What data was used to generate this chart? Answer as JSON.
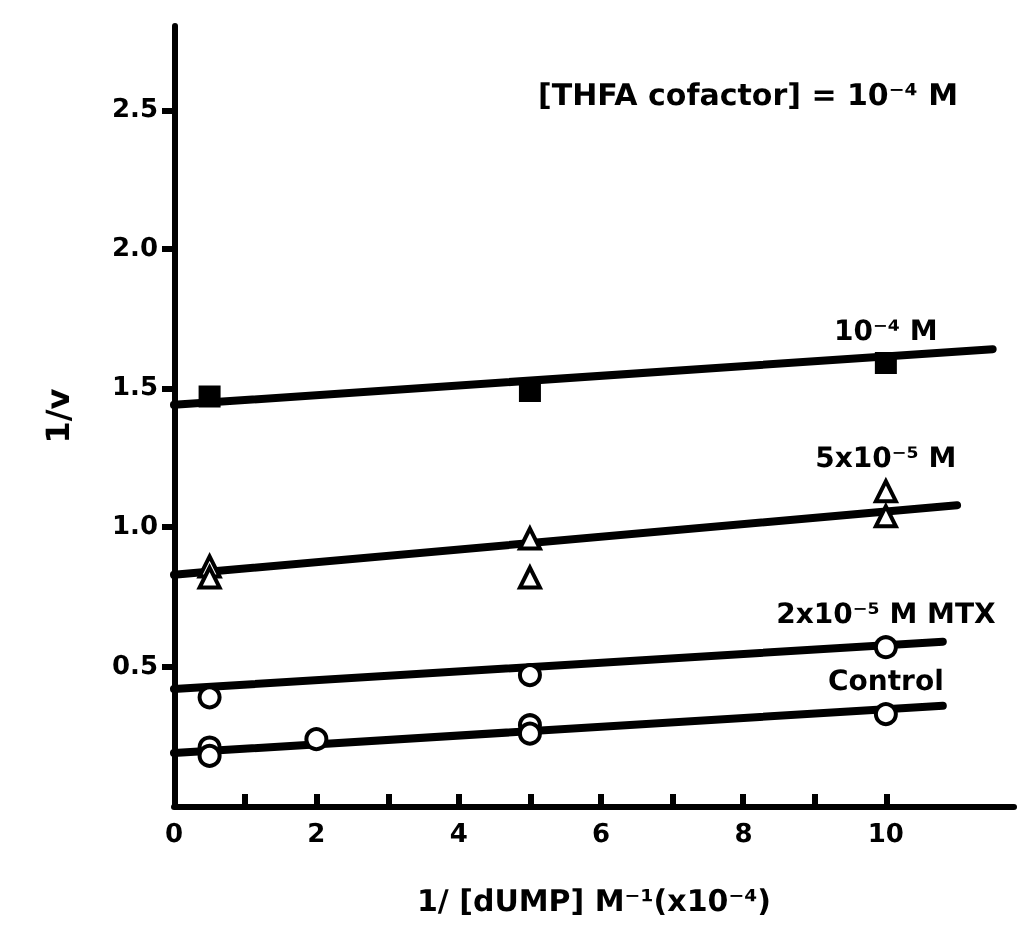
{
  "chart_data": {
    "type": "scatter",
    "xlabel": "1/ [dUMP] M⁻¹(x10⁻⁴)",
    "ylabel": "1/v",
    "annotations": [
      "[THFA cofactor] = 10⁻⁴ M"
    ],
    "xlim": [
      0,
      11.8
    ],
    "xticks": [
      0,
      {
        "value": 1,
        "label": null
      },
      2,
      {
        "value": 3,
        "label": null
      },
      4,
      {
        "value": 5,
        "label": null
      },
      6,
      {
        "value": 7,
        "label": null
      },
      8,
      {
        "value": 9,
        "label": null
      },
      10
    ],
    "ylim": [
      0,
      2.8
    ],
    "yticks": [
      0.5,
      {
        "value": 1,
        "label": "1.0"
      },
      1.5,
      {
        "value": 2,
        "label": "2.0"
      },
      2.5
    ],
    "grid": false,
    "legend": false,
    "series": [
      {
        "name": "10⁻⁴ M",
        "color": "#000000",
        "marker": "square",
        "x": [
          0.5,
          5,
          10
        ],
        "values": [
          1.47,
          1.49,
          1.59
        ]
      },
      {
        "type": "line",
        "color": "#000000",
        "marker": "none",
        "x": [
          0,
          11.5
        ],
        "values": [
          1.44,
          1.64
        ]
      },
      {
        "name": "5x10⁻⁵ M",
        "color": "#000000",
        "marker": "triangle",
        "x": [
          0.5,
          0.5,
          5,
          5,
          10,
          10
        ],
        "values": [
          0.86,
          0.82,
          0.96,
          0.82,
          1.04,
          1.13
        ]
      },
      {
        "type": "line",
        "color": "#000000",
        "marker": "none",
        "x": [
          0,
          11
        ],
        "values": [
          0.83,
          1.08
        ]
      },
      {
        "name": "2x10⁻⁵ M MTX",
        "color": "#000000",
        "marker": "circle",
        "x": [
          0.5,
          5,
          10
        ],
        "values": [
          0.39,
          0.47,
          0.57
        ]
      },
      {
        "type": "line",
        "color": "#000000",
        "marker": "none",
        "x": [
          0,
          10.8
        ],
        "values": [
          0.42,
          0.59
        ]
      },
      {
        "name": "Control",
        "color": "#000000",
        "marker": "circle",
        "x": [
          0.5,
          0.5,
          2,
          5,
          5,
          10
        ],
        "values": [
          0.21,
          0.18,
          0.24,
          0.29,
          0.26,
          0.33
        ]
      },
      {
        "type": "line",
        "color": "#000000",
        "marker": "none",
        "x": [
          0,
          10.8
        ],
        "values": [
          0.19,
          0.36
        ]
      }
    ]
  }
}
